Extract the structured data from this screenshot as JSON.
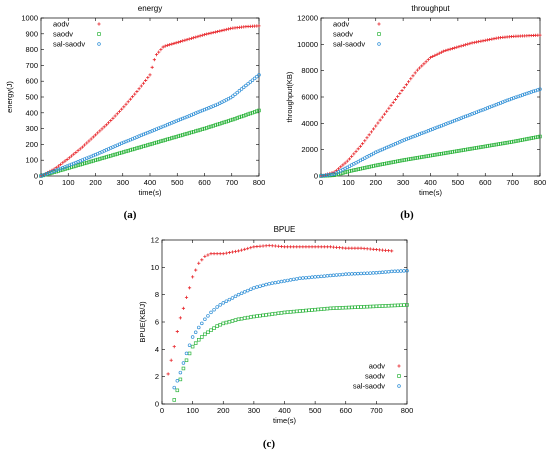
{
  "chart_data": [
    {
      "type": "scatter",
      "title": "energy",
      "caption": "(a)",
      "xlabel": "time(s)",
      "ylabel": "energy(J)",
      "xlim": [
        0,
        800
      ],
      "ylim": [
        0,
        1000
      ],
      "xticks": [
        0,
        100,
        200,
        300,
        400,
        500,
        600,
        700,
        800
      ],
      "yticks": [
        0,
        100,
        200,
        300,
        400,
        500,
        600,
        700,
        800,
        900,
        1000
      ],
      "legend": "top-left",
      "series": [
        {
          "name": "aodv",
          "marker": "plus",
          "color": "#e8262b",
          "x": [
            0,
            50,
            100,
            150,
            200,
            250,
            300,
            350,
            400,
            420,
            450,
            500,
            550,
            600,
            650,
            700,
            750,
            800
          ],
          "y": [
            0,
            45,
            110,
            180,
            260,
            340,
            430,
            530,
            640,
            760,
            820,
            845,
            870,
            895,
            915,
            935,
            945,
            950
          ]
        },
        {
          "name": "saodv",
          "marker": "square",
          "color": "#2ab33a",
          "x": [
            0,
            100,
            200,
            300,
            400,
            500,
            600,
            700,
            800
          ],
          "y": [
            0,
            50,
            100,
            150,
            200,
            250,
            300,
            355,
            415
          ]
        },
        {
          "name": "sal-saodv",
          "marker": "circle",
          "color": "#2f8fd6",
          "x": [
            0,
            100,
            200,
            300,
            400,
            500,
            600,
            650,
            700,
            750,
            800
          ],
          "y": [
            0,
            65,
            135,
            210,
            280,
            350,
            420,
            455,
            500,
            570,
            640
          ]
        }
      ]
    },
    {
      "type": "scatter",
      "title": "throughput",
      "caption": "(b)",
      "xlabel": "time(s)",
      "ylabel": "throughput(KB)",
      "xlim": [
        0,
        800
      ],
      "ylim": [
        0,
        12000
      ],
      "xticks": [
        0,
        100,
        200,
        300,
        400,
        500,
        600,
        700,
        800
      ],
      "yticks": [
        0,
        2000,
        4000,
        6000,
        8000,
        10000,
        12000
      ],
      "legend": "top-left",
      "series": [
        {
          "name": "aodv",
          "marker": "plus",
          "color": "#e8262b",
          "x": [
            0,
            50,
            100,
            150,
            200,
            250,
            300,
            350,
            400,
            450,
            500,
            550,
            600,
            650,
            700,
            750,
            800
          ],
          "y": [
            0,
            300,
            1200,
            2400,
            3800,
            5200,
            6600,
            8000,
            9000,
            9500,
            9800,
            10100,
            10300,
            10500,
            10600,
            10650,
            10700
          ]
        },
        {
          "name": "saodv",
          "marker": "square",
          "color": "#2ab33a",
          "x": [
            0,
            50,
            100,
            200,
            300,
            400,
            500,
            600,
            700,
            800
          ],
          "y": [
            0,
            60,
            350,
            800,
            1200,
            1550,
            1900,
            2250,
            2600,
            3000
          ]
        },
        {
          "name": "sal-saodv",
          "marker": "circle",
          "color": "#2f8fd6",
          "x": [
            0,
            50,
            100,
            200,
            300,
            400,
            500,
            600,
            700,
            800
          ],
          "y": [
            0,
            150,
            700,
            1800,
            2700,
            3500,
            4300,
            5100,
            5900,
            6600
          ]
        }
      ]
    },
    {
      "type": "scatter",
      "title": "BPUE",
      "caption": "(c)",
      "xlabel": "time(s)",
      "ylabel": "BPUE(KB/J)",
      "xlim": [
        0,
        800
      ],
      "ylim": [
        0,
        12
      ],
      "xticks": [
        0,
        100,
        200,
        300,
        400,
        500,
        600,
        700,
        800
      ],
      "yticks": [
        0,
        2,
        4,
        6,
        8,
        10,
        12
      ],
      "legend": "bottom-right",
      "series": [
        {
          "name": "aodv",
          "marker": "plus",
          "color": "#e8262b",
          "x": [
            20,
            30,
            40,
            50,
            60,
            70,
            80,
            90,
            100,
            120,
            140,
            160,
            180,
            200,
            250,
            300,
            350,
            400,
            450,
            500,
            550,
            600,
            650,
            700,
            750
          ],
          "y": [
            2.2,
            3.2,
            4.2,
            5.3,
            6.3,
            7.0,
            7.8,
            8.5,
            9.3,
            10.3,
            10.8,
            11.0,
            11.0,
            11.0,
            11.2,
            11.5,
            11.6,
            11.5,
            11.5,
            11.5,
            11.5,
            11.4,
            11.4,
            11.3,
            11.2
          ]
        },
        {
          "name": "saodv",
          "marker": "square",
          "color": "#2ab33a",
          "x": [
            40,
            50,
            60,
            70,
            80,
            90,
            100,
            120,
            140,
            160,
            180,
            200,
            250,
            300,
            350,
            400,
            450,
            500,
            550,
            600,
            650,
            700,
            750,
            800
          ],
          "y": [
            0.3,
            1.0,
            1.8,
            2.6,
            3.2,
            3.7,
            4.2,
            4.7,
            5.1,
            5.4,
            5.7,
            5.9,
            6.2,
            6.4,
            6.55,
            6.7,
            6.8,
            6.9,
            7.0,
            7.05,
            7.1,
            7.15,
            7.2,
            7.25
          ]
        },
        {
          "name": "sal-saodv",
          "marker": "circle",
          "color": "#2f8fd6",
          "x": [
            40,
            50,
            60,
            70,
            80,
            90,
            100,
            120,
            140,
            160,
            180,
            200,
            250,
            300,
            350,
            400,
            450,
            500,
            550,
            600,
            650,
            700,
            750,
            800
          ],
          "y": [
            1.2,
            1.7,
            2.3,
            3.0,
            3.7,
            4.3,
            4.9,
            5.6,
            6.2,
            6.7,
            7.1,
            7.4,
            8.0,
            8.5,
            8.8,
            9.0,
            9.2,
            9.3,
            9.4,
            9.5,
            9.55,
            9.6,
            9.7,
            9.75
          ]
        }
      ]
    }
  ]
}
